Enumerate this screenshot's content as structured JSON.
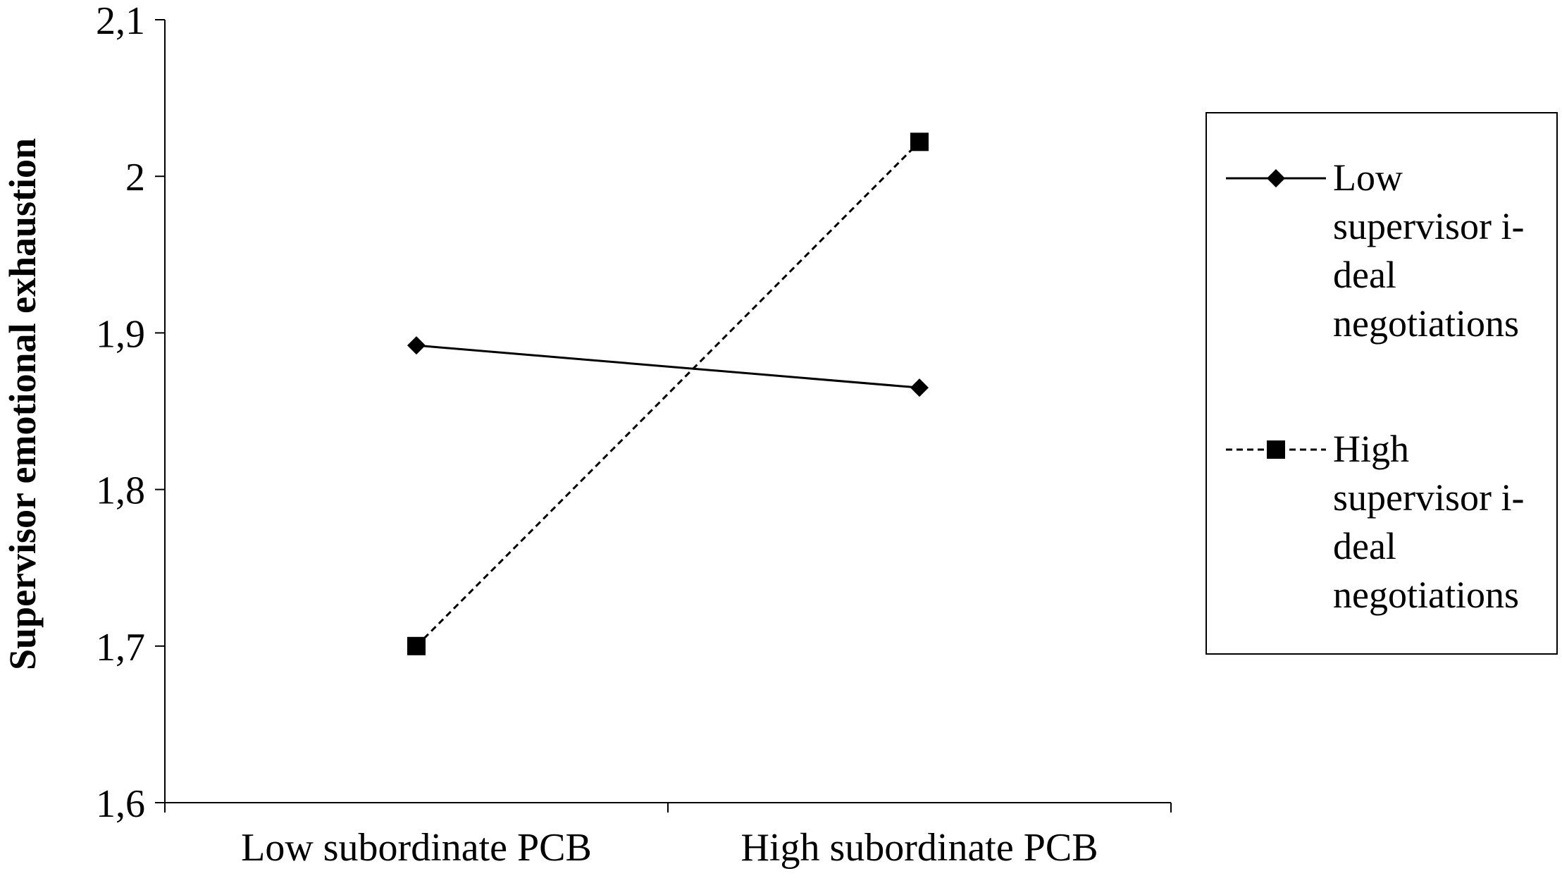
{
  "chart_data": {
    "type": "line",
    "title": "",
    "xlabel": "",
    "ylabel": "Supervisor emotional  exhaustion",
    "categories": [
      "Low subordinate PCB",
      "High subordinate PCB"
    ],
    "ylim": [
      1.6,
      2.1
    ],
    "yticks": [
      1.6,
      1.7,
      1.8,
      1.9,
      2.0,
      2.1
    ],
    "ytick_labels": [
      "1,6",
      "1,7",
      "1,8",
      "1,9",
      "2",
      "2,1"
    ],
    "grid": false,
    "legend_position": "right",
    "series": [
      {
        "name": "Low supervisor i-deal negotiations",
        "legend_lines": [
          "Low",
          "supervisor i-",
          "deal",
          "negotiations"
        ],
        "values": [
          1.892,
          1.865
        ],
        "marker": "diamond",
        "line_style": "solid",
        "color": "#000000"
      },
      {
        "name": "High supervisor i-deal negotiations",
        "legend_lines": [
          "High",
          "supervisor i-",
          "deal",
          "negotiations"
        ],
        "values": [
          1.7,
          2.022
        ],
        "marker": "square",
        "line_style": "dashed",
        "color": "#000000"
      }
    ]
  }
}
